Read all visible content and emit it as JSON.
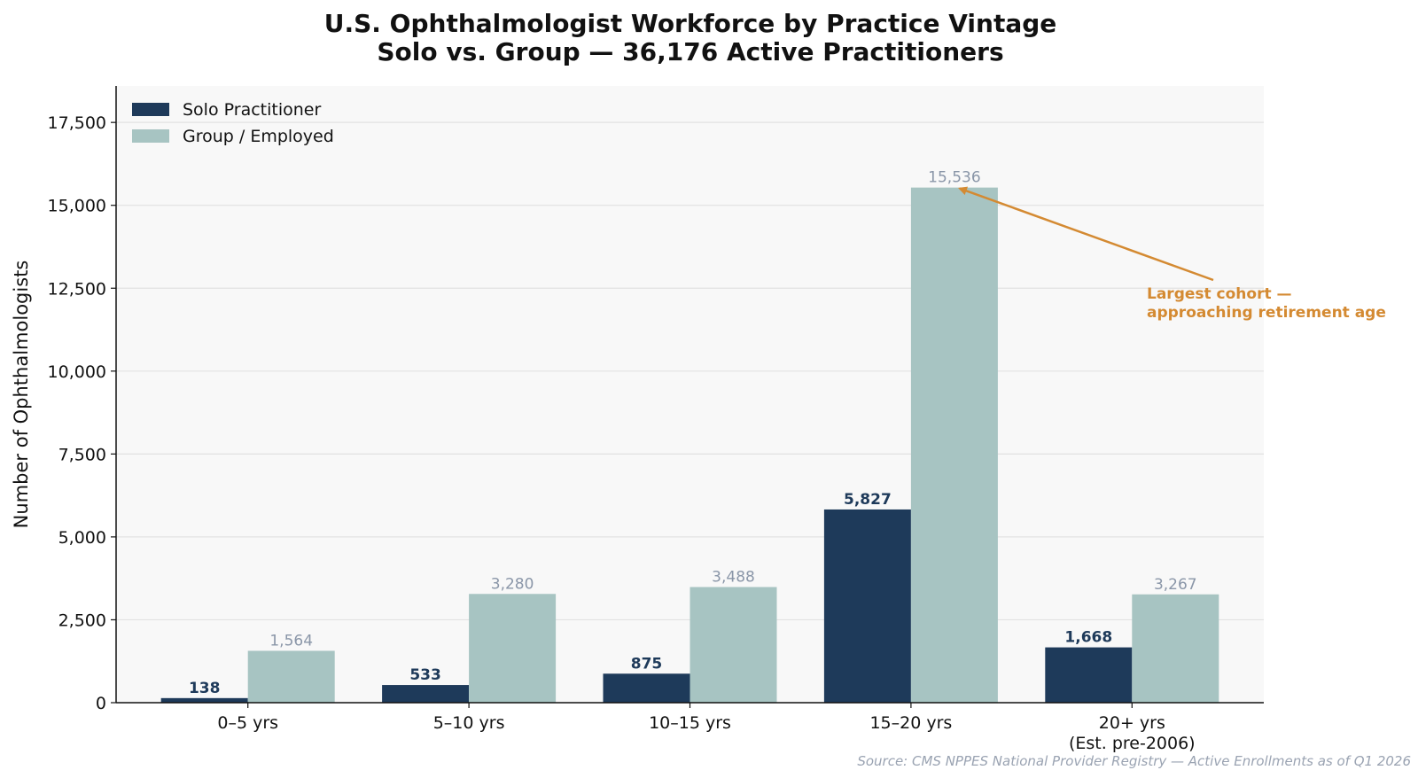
{
  "chart_data": {
    "type": "bar",
    "title_lines": [
      "U.S. Ophthalmologist Workforce by Practice Vintage",
      "Solo vs. Group — 36,176 Active Practitioners"
    ],
    "ylabel": "Number of Ophthalmologists",
    "xlabel": "",
    "ylim": [
      0,
      18600
    ],
    "yticks": [
      0,
      2500,
      5000,
      7500,
      10000,
      12500,
      15000,
      17500
    ],
    "ytick_labels": [
      "0",
      "2,500",
      "5,000",
      "7,500",
      "10,000",
      "12,500",
      "15,000",
      "17,500"
    ],
    "grid": "horizontal",
    "legend_position": "top-left",
    "categories": [
      [
        "0–5 yrs"
      ],
      [
        "5–10 yrs"
      ],
      [
        "10–15 yrs"
      ],
      [
        "15–20 yrs"
      ],
      [
        "20+ yrs",
        "(Est. pre-2006)"
      ]
    ],
    "series": [
      {
        "name": "Solo Practitioner",
        "color": "#1e3a5a",
        "values": [
          138,
          533,
          875,
          5827,
          1668
        ],
        "labels": [
          "138",
          "533",
          "875",
          "5,827",
          "1,668"
        ]
      },
      {
        "name": "Group / Employed",
        "color": "#a7c4c2",
        "values": [
          1564,
          3280,
          3488,
          15536,
          3267
        ],
        "labels": [
          "1,564",
          "3,280",
          "3,488",
          "15,536",
          "3,267"
        ]
      }
    ],
    "annotation": {
      "text_lines": [
        "Largest cohort —",
        "approaching retirement age"
      ],
      "points_to": {
        "category_index": 3,
        "series_index": 1
      },
      "color": "#d48a32"
    },
    "source": "Source: CMS NPPES National Provider Registry — Active Enrollments as of Q1 2026"
  }
}
